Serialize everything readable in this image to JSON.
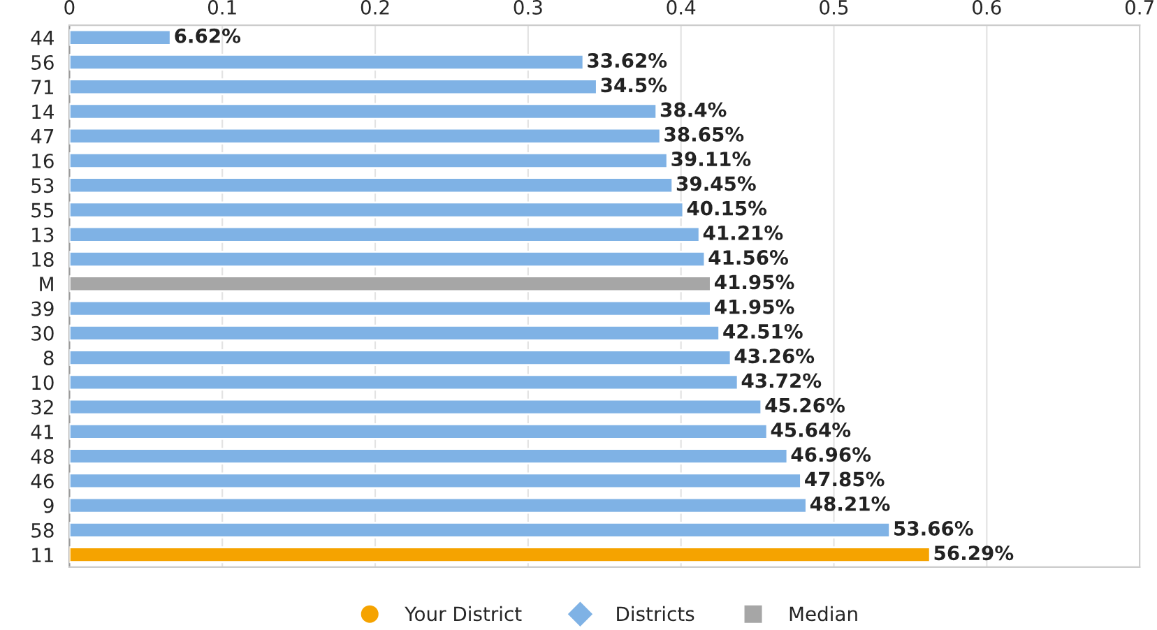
{
  "chart_data": {
    "type": "bar",
    "orientation": "horizontal",
    "categories": [
      "44",
      "56",
      "71",
      "14",
      "47",
      "16",
      "53",
      "55",
      "13",
      "18",
      "M",
      "39",
      "30",
      "8",
      "10",
      "32",
      "41",
      "48",
      "46",
      "9",
      "58",
      "11"
    ],
    "series": [
      {
        "name": "Your District",
        "color": "#f5a300",
        "marker": "circle",
        "values": [
          null,
          null,
          null,
          null,
          null,
          null,
          null,
          null,
          null,
          null,
          null,
          null,
          null,
          null,
          null,
          null,
          null,
          null,
          null,
          null,
          null,
          0.5629
        ]
      },
      {
        "name": "Districts",
        "color": "#7fb2e5",
        "marker": "diamond",
        "values": [
          0.0662,
          0.3362,
          0.345,
          0.384,
          0.3865,
          0.3911,
          0.3945,
          0.4015,
          0.4121,
          0.4156,
          null,
          0.4195,
          0.4251,
          0.4326,
          0.4372,
          0.4526,
          0.4564,
          0.4696,
          0.4785,
          0.4821,
          0.5366,
          null
        ]
      },
      {
        "name": "Median",
        "color": "#a6a6a6",
        "marker": "square",
        "values": [
          null,
          null,
          null,
          null,
          null,
          null,
          null,
          null,
          null,
          null,
          0.4195,
          null,
          null,
          null,
          null,
          null,
          null,
          null,
          null,
          null,
          null,
          null
        ]
      }
    ],
    "value_labels": [
      "6.62%",
      "33.62%",
      "34.5%",
      "38.4%",
      "38.65%",
      "39.11%",
      "39.45%",
      "40.15%",
      "41.21%",
      "41.56%",
      "41.95%",
      "41.95%",
      "42.51%",
      "43.26%",
      "43.72%",
      "45.26%",
      "45.64%",
      "46.96%",
      "47.85%",
      "48.21%",
      "53.66%",
      "56.29%"
    ],
    "xlim": [
      0,
      0.7
    ],
    "xticks": [
      0,
      0.1,
      0.2,
      0.3,
      0.4,
      0.5,
      0.6,
      0.7
    ],
    "grid": "x",
    "legend": "bottom"
  }
}
